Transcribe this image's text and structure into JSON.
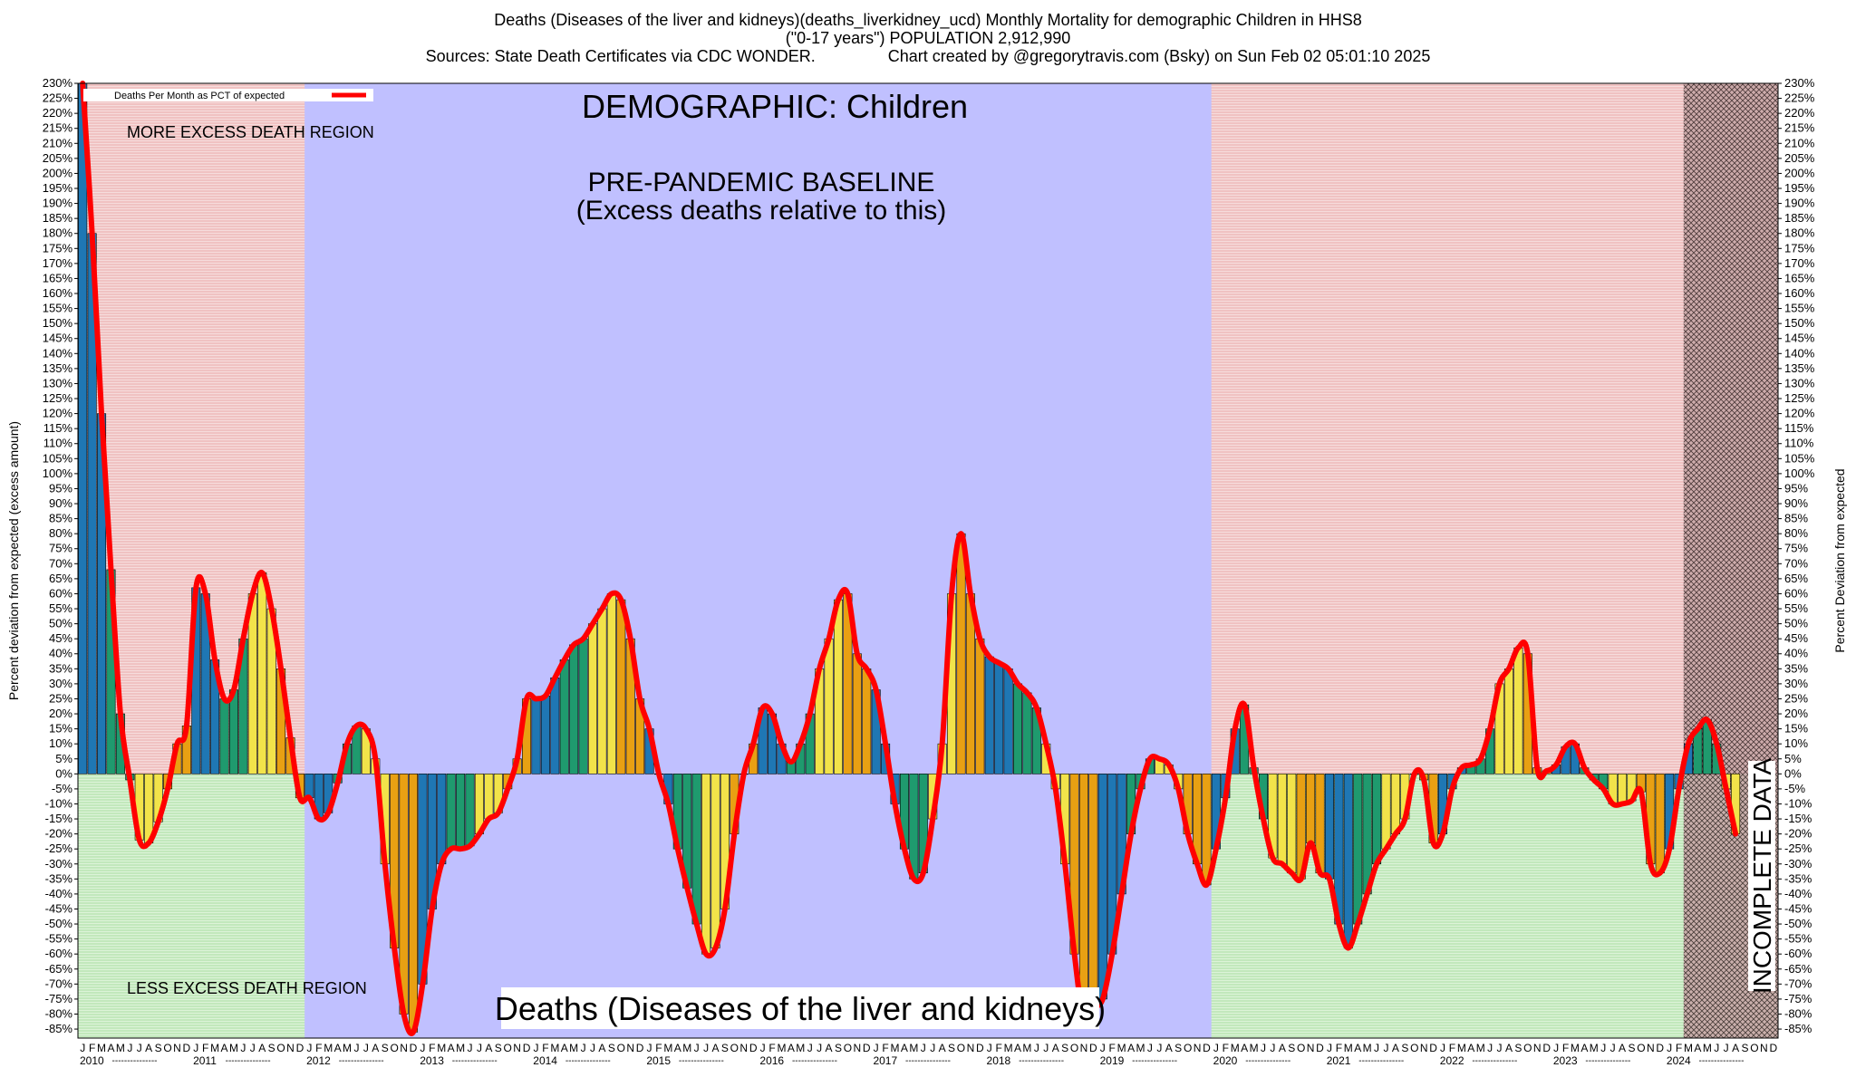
{
  "header": {
    "line1": "Deaths (Diseases of the liver and kidneys)(deaths_liverkidney_ucd) Monthly Mortality for demographic Children in HHS8",
    "line2": "(\"0-17 years\") POPULATION 2,912,990",
    "line3": "Sources: State Death Certificates via CDC WONDER.                Chart created by @gregorytravis.com (Bsky) on Sun Feb 02 05:01:10 2025"
  },
  "colors": {
    "excess_region": "#f2c6c6",
    "less_region": "#c9ecc4",
    "baseline_region": "#c0c0ff",
    "incomplete_region": "#c7a3a3",
    "line": "#ff0000",
    "bar_palette": [
      "#1f77b4",
      "#1f9a6e",
      "#f2e34a",
      "#e8a013"
    ]
  },
  "chart_data": {
    "type": "bar",
    "title": "Deaths (Diseases of the liver and kidneys)",
    "demographic_label": "DEMOGRAPHIC: Children",
    "baseline_label_1": "PRE-PANDEMIC BASELINE",
    "baseline_label_2": "(Excess deaths relative to this)",
    "more_region_label": "MORE EXCESS DEATH REGION",
    "less_region_label": "LESS EXCESS DEATH REGION",
    "incomplete_label": "INCOMPLETE DATA",
    "legend_label": "Deaths Per Month as PCT of expected",
    "legend_position": "top-left",
    "ylabel_left": "Percent deviation from expected (excess amount)",
    "ylabel_right": "Percent Deviation from expected",
    "ylim": [
      -88,
      230
    ],
    "ytick_step": 5,
    "ytick_suffix": "%",
    "years": [
      "2010",
      "2011",
      "2012",
      "2013",
      "2014",
      "2015",
      "2016",
      "2017",
      "2018",
      "2019",
      "2020",
      "2021",
      "2022",
      "2023",
      "2024"
    ],
    "month_letters": [
      "J",
      "F",
      "M",
      "A",
      "M",
      "J",
      "J",
      "A",
      "S",
      "O",
      "N",
      "D"
    ],
    "year_tick_dashes": "---------------",
    "baseline_years": [
      "2012",
      "2019"
    ],
    "incomplete_from": "2024-03",
    "values": [
      230,
      180,
      120,
      68,
      20,
      -2,
      -22,
      -23,
      -16,
      -5,
      10,
      16,
      62,
      60,
      38,
      25,
      28,
      45,
      60,
      67,
      55,
      35,
      12,
      -8,
      -8,
      -15,
      -13,
      -3,
      10,
      16,
      15,
      5,
      -30,
      -58,
      -80,
      -86,
      -70,
      -45,
      -30,
      -25,
      -25,
      -24,
      -20,
      -15,
      -13,
      -5,
      5,
      25,
      25,
      26,
      32,
      38,
      43,
      45,
      50,
      55,
      60,
      58,
      45,
      25,
      15,
      0,
      -10,
      -25,
      -38,
      -50,
      -60,
      -58,
      -45,
      -20,
      0,
      10,
      22,
      20,
      10,
      4,
      10,
      20,
      35,
      45,
      58,
      60,
      40,
      35,
      28,
      10,
      -10,
      -25,
      -35,
      -33,
      -15,
      10,
      60,
      80,
      60,
      45,
      39,
      37,
      35,
      30,
      27,
      22,
      10,
      -5,
      -30,
      -60,
      -82,
      -78,
      -75,
      -60,
      -40,
      -20,
      -5,
      5,
      5,
      3,
      -5,
      -20,
      -30,
      -37,
      -25,
      -8,
      15,
      23,
      2,
      -15,
      -28,
      -30,
      -33,
      -35,
      -23,
      -33,
      -35,
      -50,
      -58,
      -50,
      -40,
      -30,
      -25,
      -20,
      -15,
      0,
      -2,
      -23,
      -20,
      -5,
      2,
      3,
      5,
      15,
      30,
      35,
      42,
      40,
      2,
      1,
      3,
      9,
      10,
      2,
      -2,
      -5,
      -10,
      -10,
      -9,
      -6,
      -30,
      -33,
      -25,
      -5,
      10,
      15,
      18,
      10,
      -5,
      -20
    ]
  }
}
